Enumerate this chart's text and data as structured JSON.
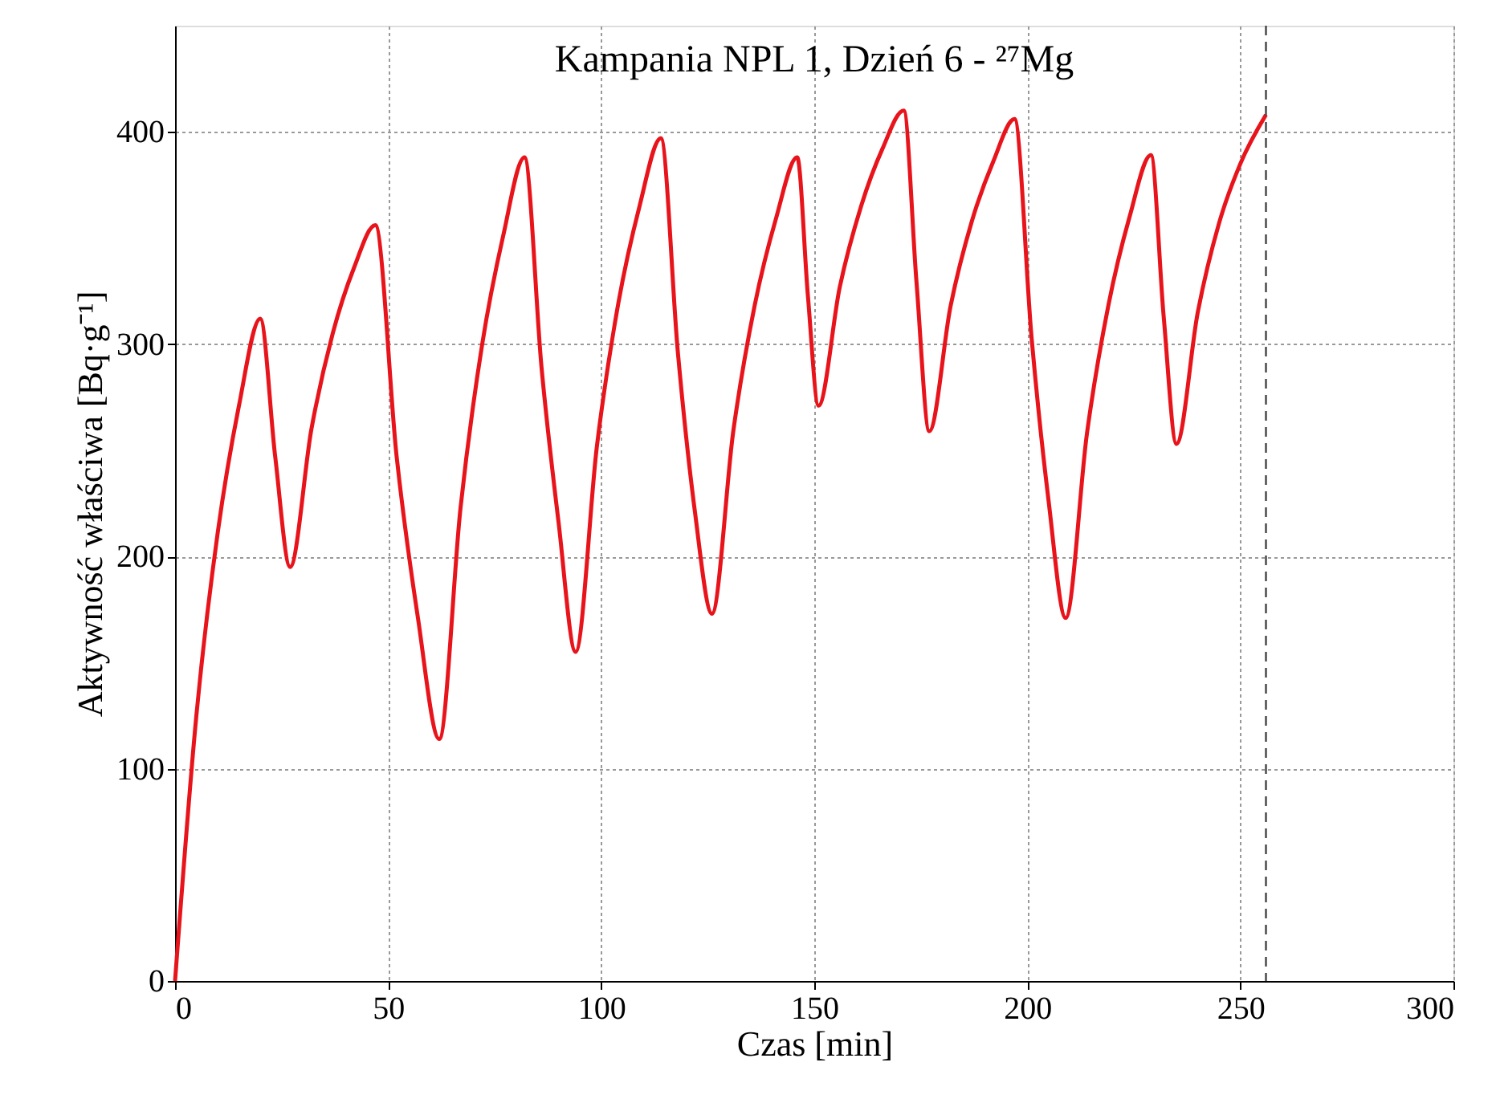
{
  "chart_data": {
    "type": "line",
    "title": "Kampania NPL 1, Dzień 6 - ²⁷Mg",
    "xlabel": "Czas [min]",
    "ylabel": "Aktywność właściwa [Bq·g⁻¹]",
    "x": [
      0,
      5,
      10,
      15,
      20,
      23.5,
      27,
      32,
      37,
      42,
      47,
      52,
      57,
      62,
      67,
      72,
      77,
      82,
      86,
      90,
      94,
      99,
      104,
      109,
      114,
      118,
      122,
      126,
      131,
      136,
      141,
      146,
      148.5,
      151,
      156,
      161,
      166,
      171,
      174,
      177,
      182,
      187,
      192,
      197,
      201,
      205,
      209,
      214,
      219,
      224,
      229,
      232,
      235,
      240,
      245,
      250,
      256
    ],
    "series": [
      {
        "color": "#e8141b",
        "values": [
          0,
          125,
          211,
          271,
          312,
          247,
          195,
          260,
          305,
          336,
          356,
          247,
          171,
          114,
          223,
          299,
          351,
          388,
          289,
          216,
          155,
          252,
          319,
          365,
          397,
          296,
          221,
          173,
          259,
          318,
          359,
          388,
          323,
          271,
          327,
          365,
          392,
          410,
          329,
          259,
          318,
          358,
          386,
          406,
          303,
          226,
          171,
          258,
          318,
          360,
          389,
          313,
          253,
          315,
          357,
          385,
          408
        ]
      }
    ],
    "xlim": [
      0,
      300
    ],
    "xticks": [
      0,
      50,
      100,
      150,
      200,
      250,
      300
    ],
    "ylim": [
      0,
      450
    ],
    "yticks": [
      0,
      100,
      200,
      300,
      400
    ],
    "grid": true,
    "marker": "none",
    "line_style": "solid",
    "ref_lines": [
      {
        "axis": "x",
        "value": 256,
        "color": "#444444",
        "line_style": "dashed"
      }
    ]
  }
}
